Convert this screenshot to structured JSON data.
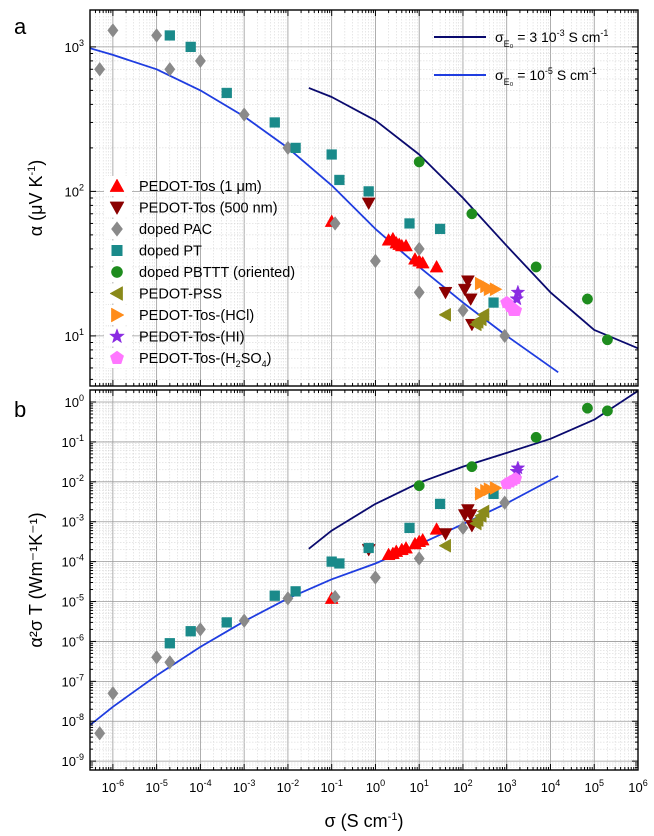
{
  "colors": {
    "fit_high": "#0a0a6e",
    "fit_low": "#1f3de0",
    "pedot_tos_1um": "#ff0000",
    "pedot_tos_500nm": "#8b0000",
    "doped_pac": "#8a8a8a",
    "doped_pt": "#1a8a8a",
    "doped_pbttt": "#1e8c1e",
    "pedot_pss": "#8a8a1a",
    "pedot_tos_hcl": "#ff8c1a",
    "pedot_tos_hi": "#8a2be2",
    "pedot_tos_h2so4": "#ff77ff"
  },
  "panel_labels": {
    "a": "a",
    "b": "b"
  },
  "fit_legend": [
    {
      "pre": "σ",
      "sub": "E₀",
      "mid": " = 3 10",
      "sup": "-3",
      "post": " S cm",
      "sup2": "-1"
    },
    {
      "pre": "σ",
      "sub": "E₀",
      "mid": " = 10",
      "sup": "-5",
      "post": " S cm",
      "sup2": "-1"
    }
  ],
  "axes": {
    "x_label": "σ (S cm",
    "x_label_sup": "-1",
    "x_label_end": ")",
    "ya_label": "α (μV K",
    "ya_label_sup": "-1",
    "ya_label_end": ")",
    "yb_label": "α²σ T (Wm⁻¹K⁻¹)"
  },
  "chart_data": [
    {
      "panel": "a",
      "type": "scatter",
      "x_scale": "log",
      "y_scale": "log",
      "xlim": [
        3e-07,
        1000000.0
      ],
      "ylim": [
        4.5,
        1800
      ],
      "xlabel": "σ (S cm-1)",
      "ylabel": "α (μV K-1)",
      "grid": true,
      "x_ticks": [
        "10-6",
        "10-5",
        "10-4",
        "10-3",
        "10-2",
        "10-1",
        "100",
        "101",
        "102",
        "103",
        "104",
        "105",
        "106"
      ],
      "y_ticks": [
        "101",
        "102",
        "103"
      ],
      "legend_position": "left-center",
      "series": [
        {
          "name": "PEDOT-Tos (1 μm)",
          "marker": "triangle-up",
          "color_key": "pedot_tos_1um",
          "points": [
            [
              0.1,
              62
            ],
            [
              2,
              46
            ],
            [
              2.5,
              47
            ],
            [
              3,
              44
            ],
            [
              3.5,
              43
            ],
            [
              4,
              42
            ],
            [
              5,
              42
            ],
            [
              8,
              34
            ],
            [
              10,
              33
            ],
            [
              12,
              32
            ],
            [
              25,
              30
            ]
          ]
        },
        {
          "name": "PEDOT-Tos (500 nm)",
          "marker": "triangle-down",
          "color_key": "pedot_tos_500nm",
          "points": [
            [
              0.7,
              83
            ],
            [
              40,
              20
            ],
            [
              110,
              21
            ],
            [
              130,
              24
            ],
            [
              150,
              18
            ],
            [
              160,
              12
            ]
          ]
        },
        {
          "name": "doped PAC",
          "marker": "diamond",
          "color_key": "doped_pac",
          "points": [
            [
              5e-07,
              700
            ],
            [
              1e-06,
              1300
            ],
            [
              1e-05,
              1200
            ],
            [
              2e-05,
              700
            ],
            [
              0.0001,
              800
            ],
            [
              0.001,
              340
            ],
            [
              0.01,
              200
            ],
            [
              0.12,
              60
            ],
            [
              1,
              33
            ],
            [
              10,
              40
            ],
            [
              10,
              20
            ],
            [
              100,
              15
            ],
            [
              900,
              10
            ]
          ]
        },
        {
          "name": "doped PT",
          "marker": "square",
          "color_key": "doped_pt",
          "points": [
            [
              2e-05,
              1200
            ],
            [
              6e-05,
              1000
            ],
            [
              0.0004,
              480
            ],
            [
              0.005,
              300
            ],
            [
              0.015,
              200
            ],
            [
              0.1,
              180
            ],
            [
              0.15,
              120
            ],
            [
              0.7,
              100
            ],
            [
              6,
              60
            ],
            [
              30,
              55
            ],
            [
              500,
              17
            ]
          ]
        },
        {
          "name": "doped PBTTT (oriented)",
          "marker": "circle",
          "color_key": "doped_pbttt",
          "points": [
            [
              10,
              160
            ],
            [
              160,
              70
            ],
            [
              4700,
              30
            ],
            [
              70000,
              18
            ],
            [
              200000,
              9.4
            ]
          ]
        },
        {
          "name": "PEDOT-PSS",
          "marker": "triangle-left",
          "color_key": "pedot_pss",
          "points": [
            [
              40,
              14
            ],
            [
              200,
              12
            ],
            [
              220,
              12.5
            ],
            [
              260,
              13
            ],
            [
              300,
              14
            ]
          ]
        },
        {
          "name": "PEDOT-Tos-(HCl)",
          "marker": "triangle-right",
          "color_key": "pedot_tos_hcl",
          "points": [
            [
              250,
              23
            ],
            [
              330,
              22
            ],
            [
              400,
              21
            ],
            [
              550,
              21
            ]
          ]
        },
        {
          "name": "PEDOT-Tos-(HI)",
          "marker": "star",
          "color_key": "pedot_tos_hi",
          "points": [
            [
              1700,
              18
            ],
            [
              1800,
              20
            ]
          ]
        },
        {
          "name": "PEDOT-Tos-(H2SO4)",
          "marker": "pentagon",
          "color_key": "pedot_tos_h2so4",
          "points": [
            [
              1000,
              17
            ],
            [
              1200,
              16
            ],
            [
              1400,
              15
            ],
            [
              1600,
              15
            ]
          ]
        }
      ],
      "fit_curves": [
        {
          "name": "σE0 = 3 10-3 S cm-1",
          "color_key": "fit_high",
          "points": [
            [
              0.03,
              520
            ],
            [
              0.1,
              450
            ],
            [
              1,
              310
            ],
            [
              10,
              180
            ],
            [
              100,
              90
            ],
            [
              1000,
              42
            ],
            [
              10000,
              20
            ],
            [
              100000,
              11
            ],
            [
              1000000,
              8.2
            ]
          ]
        },
        {
          "name": "σE0 = 10-5 S cm-1",
          "color_key": "fit_low",
          "points": [
            [
              3e-07,
              980
            ],
            [
              1e-06,
              880
            ],
            [
              1e-05,
              700
            ],
            [
              0.0001,
              500
            ],
            [
              0.001,
              330
            ],
            [
              0.01,
              200
            ],
            [
              0.1,
              110
            ],
            [
              1,
              55
            ],
            [
              10,
              30
            ],
            [
              100,
              17
            ],
            [
              1000,
              10
            ],
            [
              15000,
              5.6
            ]
          ]
        }
      ]
    },
    {
      "panel": "b",
      "type": "scatter",
      "x_scale": "log",
      "y_scale": "log",
      "xlim": [
        3e-07,
        1000000.0
      ],
      "ylim": [
        6e-10,
        2
      ],
      "xlabel": "σ (S cm-1)",
      "ylabel": "α²σ T (Wm-1K-1)",
      "grid": true,
      "y_ticks": [
        "10-9",
        "10-8",
        "10-7",
        "10-6",
        "10-5",
        "10-4",
        "10-3",
        "10-2",
        "10-1",
        "100"
      ],
      "series": [
        {
          "name": "PEDOT-Tos (1 μm)",
          "marker": "triangle-up",
          "color_key": "pedot_tos_1um",
          "points": [
            [
              0.1,
              1.2e-05
            ],
            [
              2,
              0.00015
            ],
            [
              2.5,
              0.00016
            ],
            [
              3,
              0.00018
            ],
            [
              4,
              0.0002
            ],
            [
              5,
              0.00022
            ],
            [
              8,
              0.00028
            ],
            [
              10,
              0.00032
            ],
            [
              12,
              0.00035
            ],
            [
              25,
              0.00065
            ]
          ]
        },
        {
          "name": "PEDOT-Tos (500 nm)",
          "marker": "triangle-down",
          "color_key": "pedot_tos_500nm",
          "points": [
            [
              0.7,
              0.0002
            ],
            [
              40,
              0.0005
            ],
            [
              110,
              0.0015
            ],
            [
              130,
              0.002
            ],
            [
              150,
              0.0015
            ],
            [
              160,
              0.0008
            ]
          ]
        },
        {
          "name": "doped PAC",
          "marker": "diamond",
          "color_key": "doped_pac",
          "points": [
            [
              5e-07,
              5e-09
            ],
            [
              1e-06,
              5e-08
            ],
            [
              1e-05,
              4e-07
            ],
            [
              2e-05,
              3e-07
            ],
            [
              0.0001,
              2e-06
            ],
            [
              0.001,
              3.3e-06
            ],
            [
              0.01,
              1.2e-05
            ],
            [
              0.12,
              1.3e-05
            ],
            [
              1,
              4e-05
            ],
            [
              10,
              0.00012
            ],
            [
              100,
              0.0007
            ],
            [
              900,
              0.003
            ]
          ]
        },
        {
          "name": "doped PT",
          "marker": "square",
          "color_key": "doped_pt",
          "points": [
            [
              2e-05,
              9e-07
            ],
            [
              6e-05,
              1.8e-06
            ],
            [
              0.0004,
              3e-06
            ],
            [
              0.005,
              1.4e-05
            ],
            [
              0.015,
              1.8e-05
            ],
            [
              0.1,
              0.0001
            ],
            [
              0.15,
              9e-05
            ],
            [
              0.7,
              0.00022
            ],
            [
              6,
              0.0007
            ],
            [
              30,
              0.0028
            ],
            [
              500,
              0.005
            ]
          ]
        },
        {
          "name": "doped PBTTT (oriented)",
          "marker": "circle",
          "color_key": "doped_pbttt",
          "points": [
            [
              10,
              0.008
            ],
            [
              160,
              0.024
            ],
            [
              4700,
              0.13
            ],
            [
              70000,
              0.7
            ],
            [
              200000,
              0.6
            ]
          ]
        },
        {
          "name": "PEDOT-PSS",
          "marker": "triangle-left",
          "color_key": "pedot_pss",
          "points": [
            [
              40,
              0.00025
            ],
            [
              200,
              0.0009
            ],
            [
              220,
              0.0011
            ],
            [
              260,
              0.0014
            ],
            [
              300,
              0.0018
            ]
          ]
        },
        {
          "name": "PEDOT-Tos-(HCl)",
          "marker": "triangle-right",
          "color_key": "pedot_tos_hcl",
          "points": [
            [
              250,
              0.005
            ],
            [
              330,
              0.006
            ],
            [
              400,
              0.0065
            ],
            [
              550,
              0.007
            ]
          ]
        },
        {
          "name": "PEDOT-Tos-(HI)",
          "marker": "star",
          "color_key": "pedot_tos_hi",
          "points": [
            [
              1700,
              0.018
            ],
            [
              1800,
              0.022
            ]
          ]
        },
        {
          "name": "PEDOT-Tos-(H2SO4)",
          "marker": "pentagon",
          "color_key": "pedot_tos_h2so4",
          "points": [
            [
              1000,
              0.009
            ],
            [
              1200,
              0.01
            ],
            [
              1400,
              0.011
            ],
            [
              1600,
              0.012
            ]
          ]
        }
      ],
      "fit_curves": [
        {
          "name": "σE0 = 3 10-3 S cm-1",
          "color_key": "fit_high",
          "points": [
            [
              0.03,
              0.00021
            ],
            [
              0.1,
              0.0006
            ],
            [
              1,
              0.0028
            ],
            [
              10,
              0.0095
            ],
            [
              100,
              0.024
            ],
            [
              1000,
              0.053
            ],
            [
              10000,
              0.12
            ],
            [
              100000,
              0.36
            ],
            [
              1000000,
              1.9
            ]
          ]
        },
        {
          "name": "σE0 = 10-5 S cm-1",
          "color_key": "fit_low",
          "points": [
            [
              3e-07,
              8e-09
            ],
            [
              1e-06,
              2.3e-08
            ],
            [
              1e-05,
              1.4e-07
            ],
            [
              0.0001,
              7.3e-07
            ],
            [
              0.001,
              3.2e-06
            ],
            [
              0.01,
              1.2e-05
            ],
            [
              0.1,
              3.6e-05
            ],
            [
              1,
              9e-05
            ],
            [
              10,
              0.00027
            ],
            [
              100,
              0.00087
            ],
            [
              1000,
              0.0029
            ],
            [
              15000,
              0.014
            ]
          ]
        }
      ]
    }
  ]
}
